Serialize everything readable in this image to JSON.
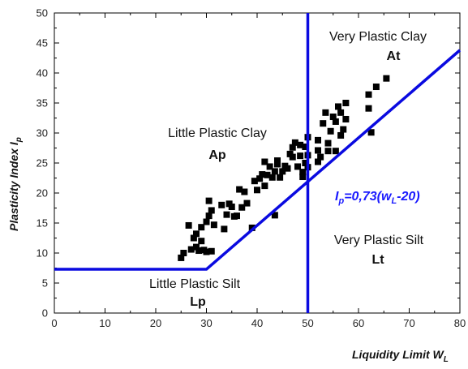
{
  "chart_data": {
    "type": "scatter",
    "xlabel": "Liquidity Limit W",
    "xlabel_sub": "L",
    "ylabel": "Plasticity Index I",
    "ylabel_sub": "p",
    "xlim": [
      0,
      80
    ],
    "ylim": [
      0,
      50
    ],
    "x_ticks": [
      0,
      10,
      20,
      30,
      40,
      50,
      60,
      70,
      80
    ],
    "y_ticks": [
      0,
      5,
      10,
      15,
      20,
      25,
      30,
      35,
      40,
      45,
      50
    ],
    "grid": false,
    "line_color": "#0a0ae0",
    "marker_color": "#000000",
    "a_line": {
      "label_prefix": "I",
      "label_sub": "p",
      "label_mid": "=0,73(w",
      "label_sub2": "L",
      "label_suffix": "-20)",
      "points": [
        [
          0,
          7.3
        ],
        [
          30,
          7.3
        ],
        [
          80,
          43.8
        ]
      ]
    },
    "vertical_line": {
      "x": 50
    },
    "regions": [
      {
        "name": "Very Plastic Clay",
        "code": "At"
      },
      {
        "name": "Little Plastic Clay",
        "code": "Ap"
      },
      {
        "name": "Very Plastic Silt",
        "code": "Lt"
      },
      {
        "name": "Little Plastic Silt",
        "code": "Lp"
      }
    ],
    "points": [
      [
        25,
        9.2
      ],
      [
        25.5,
        10
      ],
      [
        26.5,
        14.6
      ],
      [
        27,
        10.6
      ],
      [
        27.5,
        12.5
      ],
      [
        28,
        13.2
      ],
      [
        28,
        11
      ],
      [
        28.5,
        10.4
      ],
      [
        29,
        12
      ],
      [
        29,
        14.3
      ],
      [
        29.5,
        10.5
      ],
      [
        30,
        10.2
      ],
      [
        30,
        15.2
      ],
      [
        30.5,
        16.2
      ],
      [
        30.5,
        18.7
      ],
      [
        31,
        17.1
      ],
      [
        31,
        10.3
      ],
      [
        31.5,
        14.7
      ],
      [
        33,
        18
      ],
      [
        33.5,
        14
      ],
      [
        34,
        16.4
      ],
      [
        34.5,
        18.2
      ],
      [
        35,
        17.7
      ],
      [
        35.5,
        16.1
      ],
      [
        36,
        16.2
      ],
      [
        36.5,
        20.6
      ],
      [
        37,
        17.6
      ],
      [
        37.5,
        20.2
      ],
      [
        38,
        18.3
      ],
      [
        39,
        14.2
      ],
      [
        39.5,
        22
      ],
      [
        40,
        20.5
      ],
      [
        40.5,
        22.4
      ],
      [
        41,
        23.1
      ],
      [
        41.5,
        21.2
      ],
      [
        41.5,
        25.2
      ],
      [
        42,
        23
      ],
      [
        42.5,
        24.4
      ],
      [
        43,
        22.6
      ],
      [
        43.5,
        23.6
      ],
      [
        43.5,
        16.3
      ],
      [
        44,
        25.4
      ],
      [
        44,
        24.8
      ],
      [
        44.5,
        22.6
      ],
      [
        45,
        23.6
      ],
      [
        45.5,
        24.5
      ],
      [
        46,
        24.1
      ],
      [
        46.5,
        26.5
      ],
      [
        47,
        27.6
      ],
      [
        47.5,
        28.4
      ],
      [
        47,
        26
      ],
      [
        48,
        24.4
      ],
      [
        48.5,
        26.2
      ],
      [
        48.5,
        28
      ],
      [
        49,
        22.7
      ],
      [
        49,
        23.5
      ],
      [
        49.5,
        27.7
      ],
      [
        49.5,
        25
      ],
      [
        50,
        29.3
      ],
      [
        50,
        26.3
      ],
      [
        50,
        24.3
      ],
      [
        52,
        28.8
      ],
      [
        52,
        27.1
      ],
      [
        52,
        25.2
      ],
      [
        52.5,
        26
      ],
      [
        53,
        31.6
      ],
      [
        53.5,
        33.4
      ],
      [
        54,
        28.3
      ],
      [
        54,
        27
      ],
      [
        54.5,
        30.3
      ],
      [
        55,
        32.7
      ],
      [
        55.5,
        31.9
      ],
      [
        55.5,
        27
      ],
      [
        56,
        34.4
      ],
      [
        56.5,
        33.4
      ],
      [
        56.5,
        29.6
      ],
      [
        57,
        30.6
      ],
      [
        57.5,
        35
      ],
      [
        57.5,
        32.3
      ],
      [
        62,
        36.4
      ],
      [
        62,
        34.1
      ],
      [
        62.5,
        30.1
      ],
      [
        63.5,
        37.7
      ],
      [
        65.5,
        39.1
      ]
    ]
  }
}
